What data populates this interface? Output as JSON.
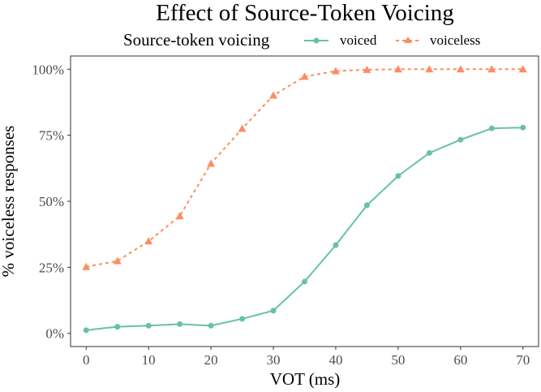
{
  "chart_data": {
    "type": "line",
    "title": "Effect of Source-Token Voicing",
    "xlabel": "VOT (ms)",
    "ylabel": "% voiceless responses",
    "legend_title": "Source-token voicing",
    "legend_position": "top",
    "x": [
      0,
      5,
      10,
      15,
      20,
      25,
      30,
      35,
      40,
      45,
      50,
      55,
      60,
      65,
      70
    ],
    "xticks": [
      0,
      10,
      20,
      30,
      40,
      50,
      60,
      70
    ],
    "yticks": [
      0,
      25,
      50,
      75,
      100
    ],
    "ytick_labels": [
      "0%",
      "25%",
      "50%",
      "75%",
      "100%"
    ],
    "xlim": [
      -2.5,
      72.5
    ],
    "ylim": [
      -5,
      105
    ],
    "grid": false,
    "series": [
      {
        "name": "voiced",
        "color": "#66c2a5",
        "marker": "circle",
        "linestyle": "solid",
        "values": [
          1.2,
          2.5,
          2.9,
          3.5,
          2.9,
          5.5,
          8.6,
          19.6,
          33.4,
          48.5,
          59.6,
          68.3,
          73.3,
          77.6,
          77.9
        ]
      },
      {
        "name": "voiceless",
        "color": "#fc8d62",
        "marker": "triangle",
        "linestyle": "dashed",
        "values": [
          25.2,
          27.4,
          34.9,
          44.4,
          64.3,
          77.5,
          90.1,
          97.2,
          99.3,
          99.8,
          100,
          100,
          100,
          100,
          100
        ]
      }
    ]
  }
}
